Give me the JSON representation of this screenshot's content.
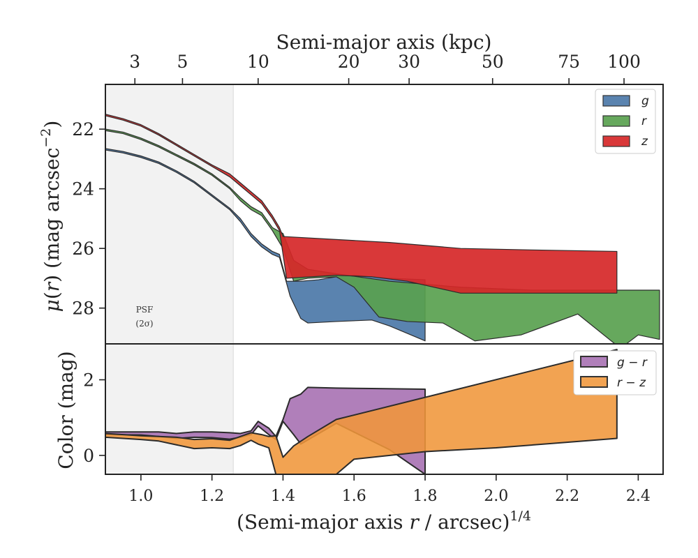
{
  "chart_data": [
    {
      "type": "area",
      "panel": "surface-brightness",
      "xlabel": "(Semi-major axis r / arcsec)",
      "xlabel_italic_part": "r",
      "xlabel_exponent": "1/4",
      "ylabel": "μ(r) (mag arcsec",
      "ylabel_exponent": "−2",
      "ylabel_suffix": ")",
      "top_axis_label": "Semi-major axis (kpc)",
      "top_ticks": [
        {
          "label": "3",
          "x": 0.983
        },
        {
          "label": "5",
          "x": 1.117
        },
        {
          "label": "10",
          "x": 1.33
        },
        {
          "label": "20",
          "x": 1.585
        },
        {
          "label": "30",
          "x": 1.755
        },
        {
          "label": "50",
          "x": 1.99
        },
        {
          "label": "75",
          "x": 2.205
        },
        {
          "label": "100",
          "x": 2.36
        }
      ],
      "xlim": [
        0.9,
        2.47
      ],
      "ylim": [
        29.2,
        20.5
      ],
      "yticks": [
        22,
        24,
        26,
        28
      ],
      "xticks": [
        1.0,
        1.2,
        1.4,
        1.6,
        1.8,
        2.0,
        2.2,
        2.4
      ],
      "psf_region": [
        0.9,
        1.26
      ],
      "psf_label_1": "PSF",
      "psf_label_2": "(2σ)",
      "legend_placement": "top-right",
      "series": [
        {
          "name": "g",
          "color": "#4c78a8",
          "upper": [
            [
              0.9,
              22.65
            ],
            [
              0.95,
              22.75
            ],
            [
              1.0,
              22.9
            ],
            [
              1.05,
              23.1
            ],
            [
              1.1,
              23.4
            ],
            [
              1.15,
              23.75
            ],
            [
              1.2,
              24.2
            ],
            [
              1.25,
              24.65
            ],
            [
              1.28,
              25.0
            ],
            [
              1.31,
              25.5
            ],
            [
              1.34,
              25.85
            ],
            [
              1.37,
              26.1
            ],
            [
              1.39,
              26.2
            ],
            [
              1.41,
              27.1
            ],
            [
              1.45,
              27.1
            ],
            [
              1.5,
              27.05
            ],
            [
              1.55,
              26.95
            ],
            [
              1.6,
              26.9
            ],
            [
              1.65,
              26.95
            ],
            [
              1.7,
              27.0
            ],
            [
              1.8,
              27.05
            ]
          ],
          "lower": [
            [
              0.9,
              22.7
            ],
            [
              0.95,
              22.8
            ],
            [
              1.0,
              22.95
            ],
            [
              1.05,
              23.15
            ],
            [
              1.1,
              23.45
            ],
            [
              1.15,
              23.8
            ],
            [
              1.2,
              24.25
            ],
            [
              1.25,
              24.7
            ],
            [
              1.28,
              25.1
            ],
            [
              1.31,
              25.6
            ],
            [
              1.34,
              25.95
            ],
            [
              1.37,
              26.2
            ],
            [
              1.39,
              26.3
            ],
            [
              1.42,
              27.6
            ],
            [
              1.45,
              28.35
            ],
            [
              1.47,
              28.5
            ],
            [
              1.55,
              28.45
            ],
            [
              1.65,
              28.4
            ],
            [
              1.7,
              28.6
            ],
            [
              1.8,
              29.1
            ]
          ]
        },
        {
          "name": "r",
          "color": "#59a14f",
          "upper": [
            [
              0.9,
              22.0
            ],
            [
              0.95,
              22.1
            ],
            [
              1.0,
              22.3
            ],
            [
              1.05,
              22.55
            ],
            [
              1.1,
              22.85
            ],
            [
              1.15,
              23.15
            ],
            [
              1.2,
              23.5
            ],
            [
              1.25,
              23.95
            ],
            [
              1.28,
              24.3
            ],
            [
              1.31,
              24.6
            ],
            [
              1.34,
              24.8
            ],
            [
              1.37,
              25.3
            ],
            [
              1.4,
              25.5
            ],
            [
              1.43,
              26.4
            ],
            [
              1.47,
              26.7
            ],
            [
              1.55,
              26.85
            ],
            [
              1.7,
              27.1
            ],
            [
              1.9,
              27.3
            ],
            [
              2.1,
              27.4
            ],
            [
              2.3,
              27.4
            ],
            [
              2.46,
              27.4
            ]
          ],
          "lower": [
            [
              0.9,
              22.05
            ],
            [
              0.95,
              22.15
            ],
            [
              1.0,
              22.35
            ],
            [
              1.05,
              22.6
            ],
            [
              1.1,
              22.9
            ],
            [
              1.15,
              23.2
            ],
            [
              1.2,
              23.55
            ],
            [
              1.25,
              24.0
            ],
            [
              1.28,
              24.4
            ],
            [
              1.31,
              24.7
            ],
            [
              1.34,
              24.9
            ],
            [
              1.37,
              25.4
            ],
            [
              1.4,
              26.0
            ],
            [
              1.43,
              27.1
            ],
            [
              1.47,
              27.0
            ],
            [
              1.55,
              26.95
            ],
            [
              1.6,
              27.3
            ],
            [
              1.67,
              28.3
            ],
            [
              1.75,
              28.45
            ],
            [
              1.85,
              28.5
            ],
            [
              1.94,
              29.1
            ],
            [
              2.07,
              28.9
            ],
            [
              2.23,
              28.2
            ],
            [
              2.35,
              29.35
            ],
            [
              2.4,
              28.9
            ],
            [
              2.46,
              29.05
            ]
          ]
        },
        {
          "name": "z",
          "color": "#d62728",
          "upper": [
            [
              0.9,
              21.5
            ],
            [
              0.95,
              21.65
            ],
            [
              1.0,
              21.85
            ],
            [
              1.05,
              22.15
            ],
            [
              1.1,
              22.5
            ],
            [
              1.15,
              22.85
            ],
            [
              1.2,
              23.2
            ],
            [
              1.25,
              23.5
            ],
            [
              1.28,
              23.8
            ],
            [
              1.31,
              24.1
            ],
            [
              1.34,
              24.4
            ],
            [
              1.37,
              24.9
            ],
            [
              1.39,
              25.3
            ],
            [
              1.4,
              25.6
            ],
            [
              1.55,
              25.7
            ],
            [
              1.7,
              25.8
            ],
            [
              1.9,
              26.0
            ],
            [
              2.1,
              26.05
            ],
            [
              2.34,
              26.1
            ]
          ],
          "lower": [
            [
              0.9,
              21.55
            ],
            [
              0.95,
              21.7
            ],
            [
              1.0,
              21.9
            ],
            [
              1.05,
              22.2
            ],
            [
              1.1,
              22.55
            ],
            [
              1.15,
              22.9
            ],
            [
              1.2,
              23.25
            ],
            [
              1.25,
              23.6
            ],
            [
              1.28,
              23.9
            ],
            [
              1.31,
              24.2
            ],
            [
              1.34,
              24.5
            ],
            [
              1.37,
              25.0
            ],
            [
              1.39,
              25.4
            ],
            [
              1.41,
              27.0
            ],
            [
              1.55,
              26.9
            ],
            [
              1.65,
              26.95
            ],
            [
              1.75,
              27.1
            ],
            [
              1.9,
              27.5
            ],
            [
              2.1,
              27.5
            ],
            [
              2.34,
              27.5
            ]
          ]
        }
      ]
    },
    {
      "type": "area",
      "panel": "color",
      "ylabel": "Color (mag)",
      "xlim": [
        0.9,
        2.47
      ],
      "ylim": [
        -0.5,
        2.95
      ],
      "yticks": [
        0,
        2
      ],
      "psf_region": [
        0.9,
        1.26
      ],
      "legend_placement": "top-right",
      "series": [
        {
          "name": "g − r",
          "label_math_left": "g",
          "label_math_op": " − ",
          "label_math_right": "r",
          "color": "#a56db0",
          "upper": [
            [
              0.9,
              0.62
            ],
            [
              1.0,
              0.62
            ],
            [
              1.05,
              0.62
            ],
            [
              1.1,
              0.58
            ],
            [
              1.15,
              0.62
            ],
            [
              1.2,
              0.62
            ],
            [
              1.25,
              0.6
            ],
            [
              1.28,
              0.58
            ],
            [
              1.31,
              0.65
            ],
            [
              1.33,
              0.9
            ],
            [
              1.36,
              0.72
            ],
            [
              1.38,
              0.5
            ],
            [
              1.4,
              0.95
            ],
            [
              1.42,
              1.5
            ],
            [
              1.45,
              1.62
            ],
            [
              1.47,
              1.8
            ],
            [
              1.55,
              1.78
            ],
            [
              1.65,
              1.77
            ],
            [
              1.8,
              1.75
            ]
          ],
          "lower": [
            [
              0.9,
              0.55
            ],
            [
              1.0,
              0.54
            ],
            [
              1.05,
              0.5
            ],
            [
              1.1,
              0.45
            ],
            [
              1.15,
              0.48
            ],
            [
              1.2,
              0.47
            ],
            [
              1.25,
              0.43
            ],
            [
              1.28,
              0.48
            ],
            [
              1.31,
              0.55
            ],
            [
              1.33,
              0.78
            ],
            [
              1.36,
              0.55
            ],
            [
              1.38,
              0.42
            ],
            [
              1.4,
              0.9
            ],
            [
              1.43,
              0.55
            ],
            [
              1.45,
              0.3
            ],
            [
              1.55,
              0.85
            ],
            [
              1.7,
              0.15
            ],
            [
              1.8,
              -0.5
            ]
          ]
        },
        {
          "name": "r − z",
          "label_math_left": "r",
          "label_math_op": " − ",
          "label_math_right": "z",
          "color": "#f0963a",
          "upper": [
            [
              0.9,
              0.58
            ],
            [
              1.0,
              0.52
            ],
            [
              1.05,
              0.5
            ],
            [
              1.1,
              0.48
            ],
            [
              1.15,
              0.42
            ],
            [
              1.2,
              0.44
            ],
            [
              1.25,
              0.4
            ],
            [
              1.28,
              0.5
            ],
            [
              1.31,
              0.6
            ],
            [
              1.34,
              0.55
            ],
            [
              1.36,
              0.5
            ],
            [
              1.38,
              0.52
            ],
            [
              1.4,
              -0.05
            ],
            [
              1.43,
              0.25
            ],
            [
              1.47,
              0.5
            ],
            [
              1.55,
              0.95
            ],
            [
              2.34,
              2.8
            ]
          ],
          "lower": [
            [
              0.9,
              0.48
            ],
            [
              1.0,
              0.42
            ],
            [
              1.05,
              0.38
            ],
            [
              1.1,
              0.28
            ],
            [
              1.15,
              0.18
            ],
            [
              1.2,
              0.2
            ],
            [
              1.25,
              0.18
            ],
            [
              1.28,
              0.26
            ],
            [
              1.31,
              0.4
            ],
            [
              1.33,
              0.3
            ],
            [
              1.36,
              0.2
            ],
            [
              1.38,
              -0.5
            ],
            [
              1.55,
              -0.5
            ],
            [
              1.6,
              -0.1
            ],
            [
              1.8,
              0.1
            ],
            [
              2.0,
              0.2
            ],
            [
              2.34,
              0.45
            ]
          ]
        }
      ]
    }
  ]
}
